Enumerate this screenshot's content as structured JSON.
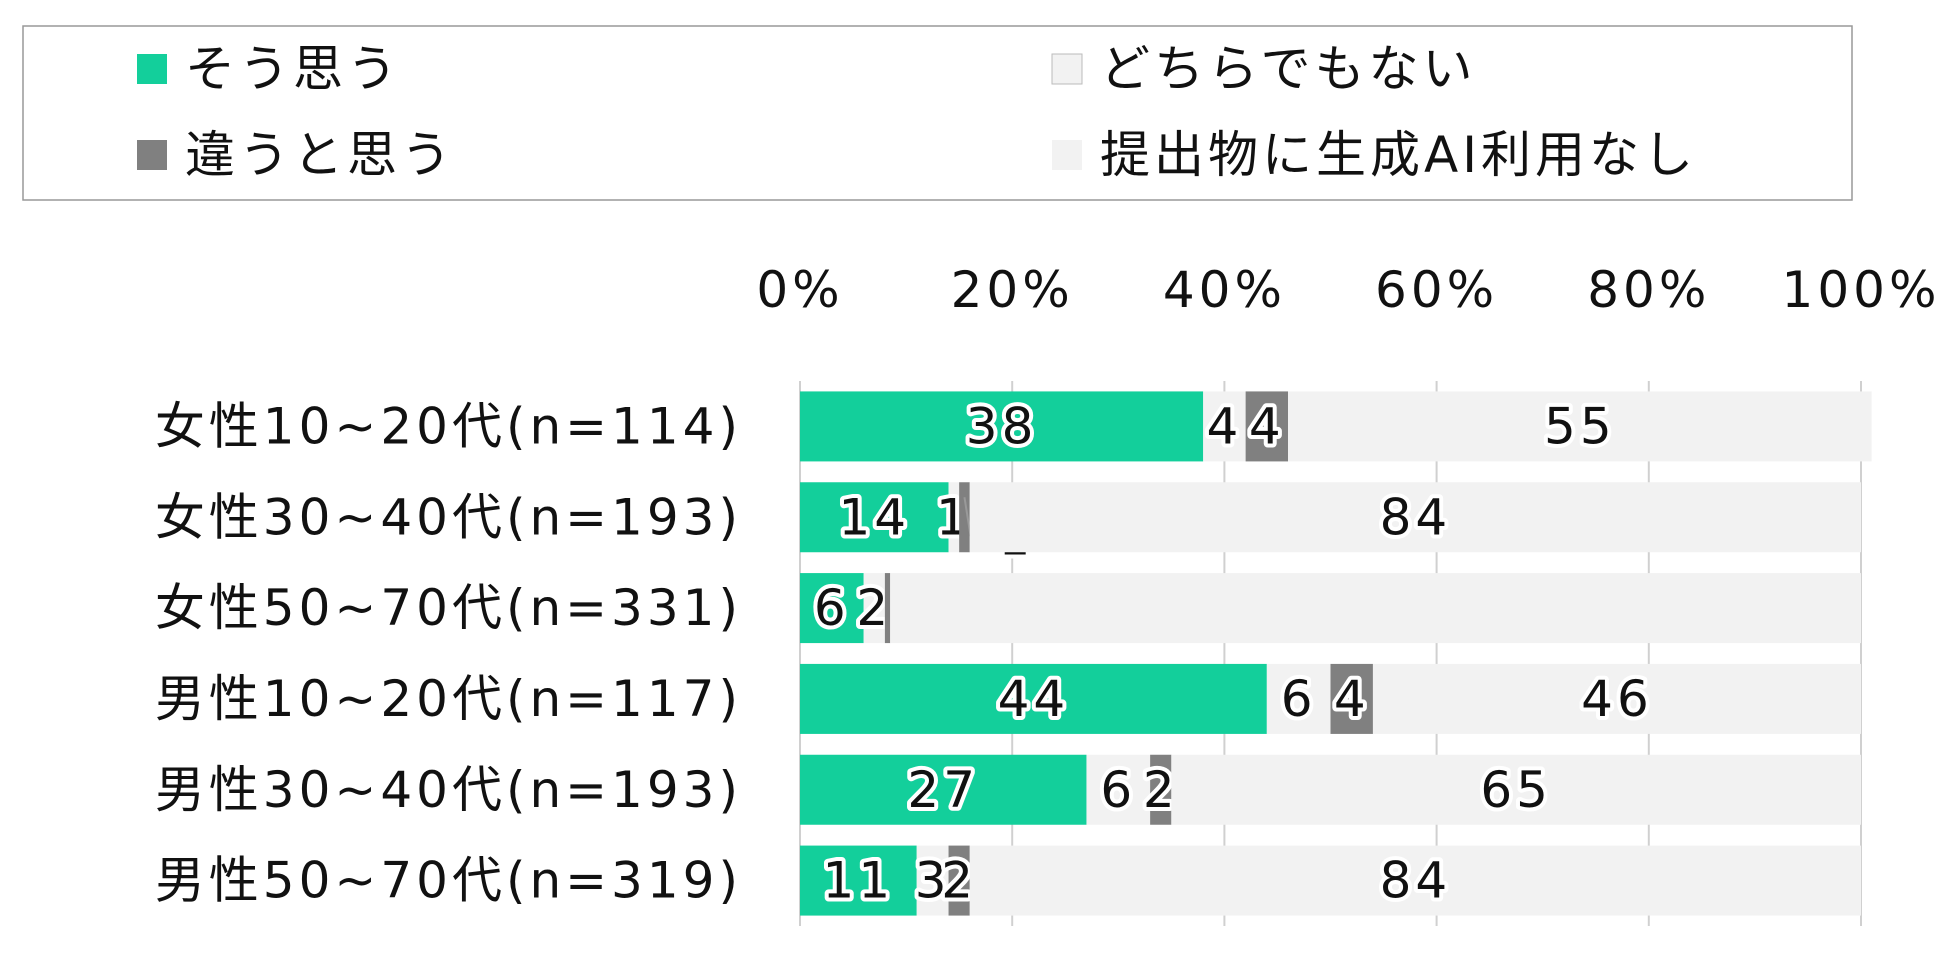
{
  "chart_data": {
    "type": "stacked-barh",
    "categories": [
      "女性10~20代(n=114)",
      "女性30~40代(n=193)",
      "女性50~70代(n=331)",
      "男性10~20代(n=117)",
      "男性30~40代(n=193)",
      "男性50~70代(n=319)"
    ],
    "series": [
      {
        "name": "そう思う",
        "color": "#13cf9b",
        "values": [
          38,
          14,
          6,
          44,
          27,
          11
        ],
        "value_labels": [
          "38",
          "14",
          "6",
          "44",
          "27",
          "11"
        ]
      },
      {
        "name": "どちらでもない",
        "color": "#f2f2f2",
        "values": [
          4,
          1,
          2,
          6,
          6,
          3
        ],
        "value_labels": [
          "4",
          "1",
          "2",
          "6",
          "6",
          "3"
        ]
      },
      {
        "name": "違うと思う",
        "color": "#808080",
        "values": [
          4,
          1,
          0.5,
          4,
          2,
          2
        ],
        "value_labels": [
          "4",
          "1",
          null,
          "4",
          "2",
          "2"
        ]
      },
      {
        "name": "提出物に生成AI利用なし",
        "color": "#f2f2f2",
        "values": [
          55,
          84,
          91.5,
          46,
          65,
          84
        ],
        "value_labels": [
          "55",
          "84",
          null,
          "46",
          "65",
          "84"
        ]
      }
    ],
    "xlim": [
      0,
      100
    ],
    "xticks": [
      {
        "value": 0,
        "label": "0%"
      },
      {
        "value": 20,
        "label": "20%"
      },
      {
        "value": 40,
        "label": "40%"
      },
      {
        "value": 60,
        "label": "60%"
      },
      {
        "value": 80,
        "label": "80%"
      },
      {
        "value": 100,
        "label": "100%"
      }
    ],
    "grid": true
  }
}
